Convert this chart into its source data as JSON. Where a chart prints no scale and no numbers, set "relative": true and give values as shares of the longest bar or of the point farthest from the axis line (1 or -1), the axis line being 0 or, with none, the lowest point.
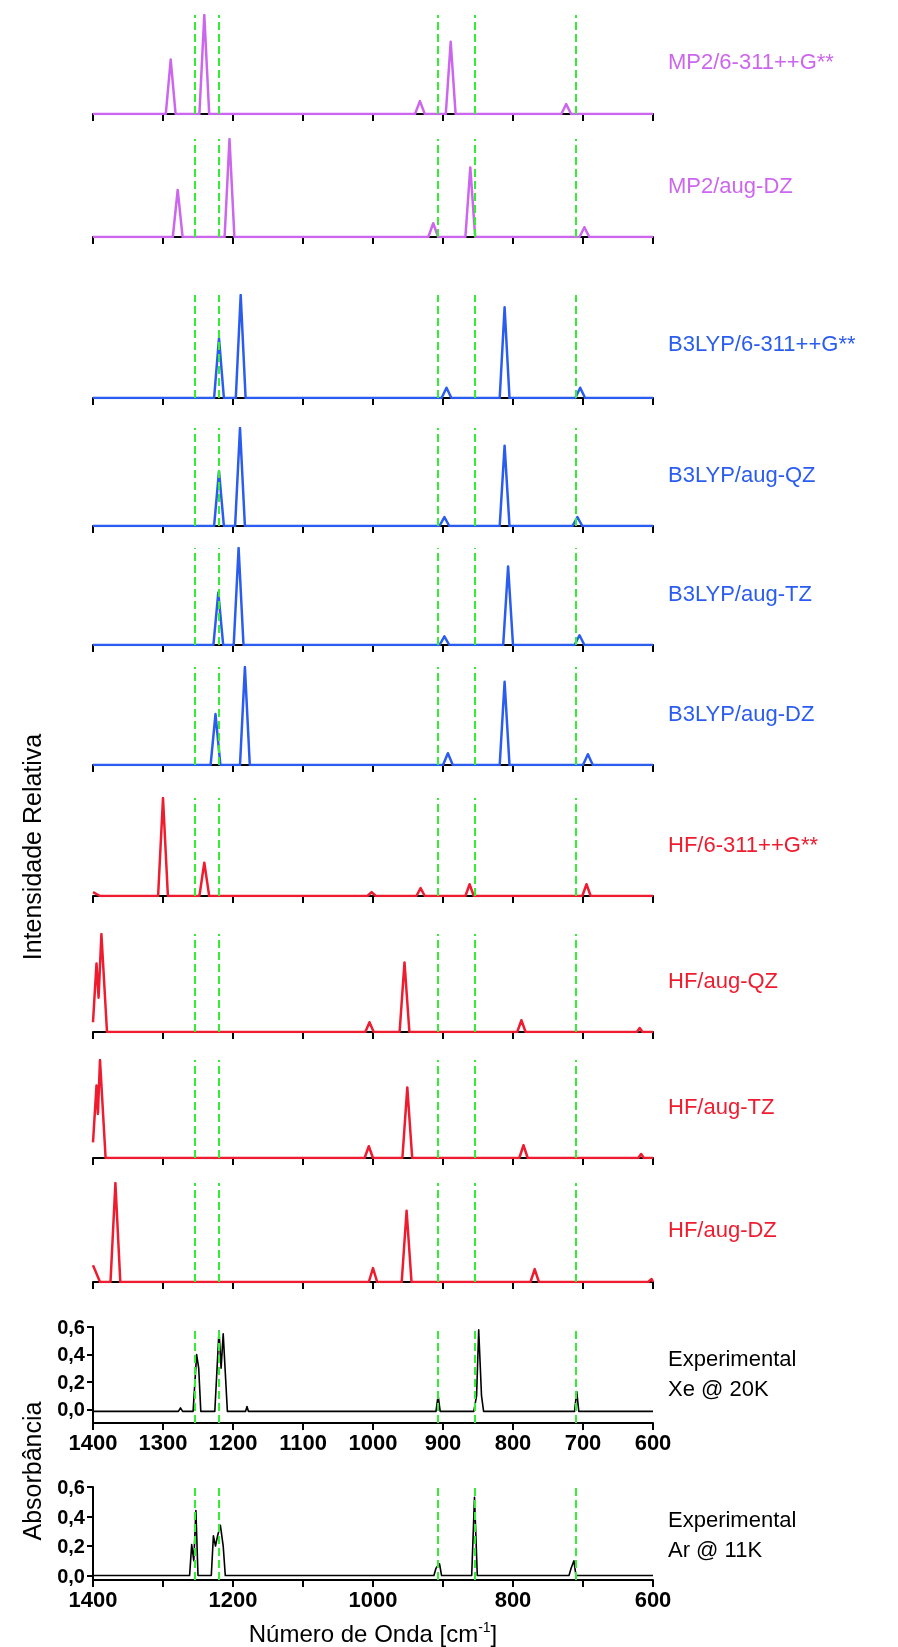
{
  "chart_data": [
    {
      "type": "line",
      "relative": true,
      "tick_labels": false,
      "xlim": [
        1400,
        600
      ],
      "xticks": [
        1400,
        1300,
        1200,
        1100,
        1000,
        900,
        800,
        700,
        600
      ],
      "annotations": [
        "MP2/6-311++G**"
      ],
      "series": [
        {
          "color": "#cc66ee",
          "x": [
            1400,
            1296,
            1289,
            1282,
            1248,
            1241,
            1234,
            940,
            933,
            926,
            896,
            889,
            882,
            731,
            724,
            717,
            600
          ],
          "values": [
            0,
            0,
            0.55,
            0,
            0,
            1,
            0,
            0,
            0.13,
            0,
            0,
            0.73,
            0,
            0,
            0.1,
            0,
            0
          ]
        }
      ],
      "ref_lines": [
        {
          "axis": "x",
          "value": 1255,
          "color": "#33ee33",
          "line_style": "dashed"
        },
        {
          "axis": "x",
          "value": 1220,
          "color": "#33ee33",
          "line_style": "dashed"
        },
        {
          "axis": "x",
          "value": 908,
          "color": "#33ee33",
          "line_style": "dashed"
        },
        {
          "axis": "x",
          "value": 854,
          "color": "#33ee33",
          "line_style": "dashed"
        },
        {
          "axis": "x",
          "value": 711,
          "color": "#33ee33",
          "line_style": "dashed"
        }
      ]
    },
    {
      "type": "line",
      "relative": true,
      "tick_labels": false,
      "xlim": [
        1400,
        600
      ],
      "xticks": [
        1400,
        1300,
        1200,
        1100,
        1000,
        900,
        800,
        700,
        600
      ],
      "annotations": [
        "MP2/aug-DZ"
      ],
      "series": [
        {
          "color": "#cc66ee",
          "x": [
            1400,
            1286,
            1279,
            1272,
            1212,
            1205,
            1198,
            921,
            914,
            907,
            868,
            861,
            854,
            705,
            698,
            691,
            600
          ],
          "values": [
            0,
            0,
            0.48,
            0,
            0,
            1,
            0,
            0,
            0.14,
            0,
            0,
            0.71,
            0,
            0,
            0.1,
            0,
            0
          ]
        }
      ],
      "ref_lines": [
        {
          "axis": "x",
          "value": 1255,
          "color": "#33ee33",
          "line_style": "dashed"
        },
        {
          "axis": "x",
          "value": 1220,
          "color": "#33ee33",
          "line_style": "dashed"
        },
        {
          "axis": "x",
          "value": 908,
          "color": "#33ee33",
          "line_style": "dashed"
        },
        {
          "axis": "x",
          "value": 854,
          "color": "#33ee33",
          "line_style": "dashed"
        },
        {
          "axis": "x",
          "value": 711,
          "color": "#33ee33",
          "line_style": "dashed"
        }
      ]
    },
    {
      "type": "line",
      "relative": true,
      "tick_labels": false,
      "xlim": [
        1400,
        600
      ],
      "xticks": [
        1400,
        1300,
        1200,
        1100,
        1000,
        900,
        800,
        700,
        600
      ],
      "annotations": [
        "B3LYP/6-311++G**"
      ],
      "series": [
        {
          "color": "#2a5cf0",
          "x": [
            1400,
            1227,
            1220,
            1213,
            1196,
            1189,
            1182,
            902,
            895,
            888,
            819,
            812,
            805,
            711,
            704,
            697,
            600
          ],
          "values": [
            0,
            0,
            0.58,
            0,
            0,
            1,
            0,
            0,
            0.1,
            0,
            0,
            0.88,
            0,
            0,
            0.1,
            0,
            0
          ]
        }
      ],
      "ref_lines": [
        {
          "axis": "x",
          "value": 1255,
          "color": "#33ee33",
          "line_style": "dashed"
        },
        {
          "axis": "x",
          "value": 1220,
          "color": "#33ee33",
          "line_style": "dashed"
        },
        {
          "axis": "x",
          "value": 908,
          "color": "#33ee33",
          "line_style": "dashed"
        },
        {
          "axis": "x",
          "value": 854,
          "color": "#33ee33",
          "line_style": "dashed"
        },
        {
          "axis": "x",
          "value": 711,
          "color": "#33ee33",
          "line_style": "dashed"
        }
      ]
    },
    {
      "type": "line",
      "relative": true,
      "tick_labels": false,
      "xlim": [
        1400,
        600
      ],
      "xticks": [
        1400,
        1300,
        1200,
        1100,
        1000,
        900,
        800,
        700,
        600
      ],
      "annotations": [
        "B3LYP/aug-QZ"
      ],
      "series": [
        {
          "color": "#2a5cf0",
          "x": [
            1400,
            1227,
            1220,
            1213,
            1197,
            1190,
            1183,
            905,
            898,
            891,
            819,
            812,
            805,
            715,
            708,
            701,
            600
          ],
          "values": [
            0,
            0,
            0.56,
            0,
            0,
            1,
            0,
            0,
            0.09,
            0,
            0,
            0.82,
            0,
            0,
            0.09,
            0,
            0
          ]
        }
      ],
      "ref_lines": [
        {
          "axis": "x",
          "value": 1255,
          "color": "#33ee33",
          "line_style": "dashed"
        },
        {
          "axis": "x",
          "value": 1220,
          "color": "#33ee33",
          "line_style": "dashed"
        },
        {
          "axis": "x",
          "value": 908,
          "color": "#33ee33",
          "line_style": "dashed"
        },
        {
          "axis": "x",
          "value": 854,
          "color": "#33ee33",
          "line_style": "dashed"
        },
        {
          "axis": "x",
          "value": 711,
          "color": "#33ee33",
          "line_style": "dashed"
        }
      ]
    },
    {
      "type": "line",
      "relative": true,
      "tick_labels": false,
      "xlim": [
        1400,
        600
      ],
      "xticks": [
        1400,
        1300,
        1200,
        1100,
        1000,
        900,
        800,
        700,
        600
      ],
      "annotations": [
        "B3LYP/aug-TZ"
      ],
      "series": [
        {
          "color": "#2a5cf0",
          "x": [
            1400,
            1228,
            1221,
            1214,
            1199,
            1192,
            1185,
            905,
            898,
            891,
            814,
            807,
            800,
            712,
            705,
            698,
            600
          ],
          "values": [
            0,
            0,
            0.54,
            0,
            0,
            1,
            0,
            0,
            0.09,
            0,
            0,
            0.81,
            0,
            0,
            0.1,
            0,
            0
          ]
        }
      ],
      "ref_lines": [
        {
          "axis": "x",
          "value": 1255,
          "color": "#33ee33",
          "line_style": "dashed"
        },
        {
          "axis": "x",
          "value": 1220,
          "color": "#33ee33",
          "line_style": "dashed"
        },
        {
          "axis": "x",
          "value": 908,
          "color": "#33ee33",
          "line_style": "dashed"
        },
        {
          "axis": "x",
          "value": 854,
          "color": "#33ee33",
          "line_style": "dashed"
        },
        {
          "axis": "x",
          "value": 711,
          "color": "#33ee33",
          "line_style": "dashed"
        }
      ]
    },
    {
      "type": "line",
      "relative": true,
      "tick_labels": false,
      "xlim": [
        1400,
        600
      ],
      "xticks": [
        1400,
        1300,
        1200,
        1100,
        1000,
        900,
        800,
        700,
        600
      ],
      "annotations": [
        "B3LYP/aug-DZ"
      ],
      "series": [
        {
          "color": "#2a5cf0",
          "x": [
            1400,
            1232,
            1225,
            1218,
            1190,
            1183,
            1176,
            900,
            893,
            886,
            819,
            812,
            805,
            700,
            693,
            686,
            600
          ],
          "values": [
            0,
            0,
            0.52,
            0,
            0,
            1,
            0,
            0,
            0.12,
            0,
            0,
            0.85,
            0,
            0,
            0.11,
            0,
            0
          ]
        }
      ],
      "ref_lines": [
        {
          "axis": "x",
          "value": 1255,
          "color": "#33ee33",
          "line_style": "dashed"
        },
        {
          "axis": "x",
          "value": 1220,
          "color": "#33ee33",
          "line_style": "dashed"
        },
        {
          "axis": "x",
          "value": 908,
          "color": "#33ee33",
          "line_style": "dashed"
        },
        {
          "axis": "x",
          "value": 854,
          "color": "#33ee33",
          "line_style": "dashed"
        },
        {
          "axis": "x",
          "value": 711,
          "color": "#33ee33",
          "line_style": "dashed"
        }
      ]
    },
    {
      "type": "line",
      "relative": true,
      "tick_labels": false,
      "xlim": [
        1400,
        600
      ],
      "xticks": [
        1400,
        1300,
        1200,
        1100,
        1000,
        900,
        800,
        700,
        600
      ],
      "annotations": [
        "HF/6-311++G**"
      ],
      "ylabel": "Intensidade Relativa",
      "series": [
        {
          "color": "#ee1c2e",
          "x": [
            1400,
            1390,
            1307,
            1300,
            1293,
            1248,
            1241,
            1234,
            1008,
            1002,
            996,
            938,
            932,
            926,
            868,
            862,
            856,
            701,
            695,
            689,
            600
          ],
          "values": [
            0.04,
            0,
            0,
            1,
            0,
            0,
            0.34,
            0,
            0,
            0.04,
            0,
            0,
            0.08,
            0,
            0,
            0.12,
            0,
            0,
            0.12,
            0,
            0
          ]
        }
      ],
      "ref_lines": [
        {
          "axis": "x",
          "value": 1255,
          "color": "#33ee33",
          "line_style": "dashed"
        },
        {
          "axis": "x",
          "value": 1220,
          "color": "#33ee33",
          "line_style": "dashed"
        },
        {
          "axis": "x",
          "value": 908,
          "color": "#33ee33",
          "line_style": "dashed"
        },
        {
          "axis": "x",
          "value": 854,
          "color": "#33ee33",
          "line_style": "dashed"
        },
        {
          "axis": "x",
          "value": 711,
          "color": "#33ee33",
          "line_style": "dashed"
        }
      ]
    },
    {
      "type": "line",
      "relative": true,
      "tick_labels": false,
      "xlim": [
        1400,
        600
      ],
      "xticks": [
        1400,
        1300,
        1200,
        1100,
        1000,
        900,
        800,
        700,
        600
      ],
      "annotations": [
        "HF/aug-QZ"
      ],
      "series": [
        {
          "color": "#ee1c2e",
          "x": [
            1400,
            1395,
            1392,
            1388,
            1380,
            1011,
            1005,
            999,
            962,
            955,
            948,
            794,
            788,
            782,
            623,
            619,
            615,
            600
          ],
          "values": [
            0.1,
            0.7,
            0.35,
            1,
            0,
            0,
            0.1,
            0,
            0,
            0.71,
            0,
            0,
            0.12,
            0,
            0,
            0.04,
            0,
            0
          ]
        }
      ],
      "ref_lines": [
        {
          "axis": "x",
          "value": 1255,
          "color": "#33ee33",
          "line_style": "dashed"
        },
        {
          "axis": "x",
          "value": 1220,
          "color": "#33ee33",
          "line_style": "dashed"
        },
        {
          "axis": "x",
          "value": 908,
          "color": "#33ee33",
          "line_style": "dashed"
        },
        {
          "axis": "x",
          "value": 854,
          "color": "#33ee33",
          "line_style": "dashed"
        },
        {
          "axis": "x",
          "value": 711,
          "color": "#33ee33",
          "line_style": "dashed"
        }
      ]
    },
    {
      "type": "line",
      "relative": true,
      "tick_labels": false,
      "xlim": [
        1400,
        600
      ],
      "xticks": [
        1400,
        1300,
        1200,
        1100,
        1000,
        900,
        800,
        700,
        600
      ],
      "annotations": [
        "HF/aug-TZ"
      ],
      "series": [
        {
          "color": "#ee1c2e",
          "x": [
            1400,
            1395,
            1393,
            1390,
            1382,
            1012,
            1006,
            1000,
            958,
            951,
            944,
            791,
            785,
            779,
            621,
            617,
            613,
            600
          ],
          "values": [
            0.16,
            0.74,
            0.45,
            1,
            0,
            0,
            0.12,
            0,
            0,
            0.72,
            0,
            0,
            0.13,
            0,
            0,
            0.04,
            0,
            0
          ]
        }
      ],
      "ref_lines": [
        {
          "axis": "x",
          "value": 1255,
          "color": "#33ee33",
          "line_style": "dashed"
        },
        {
          "axis": "x",
          "value": 1220,
          "color": "#33ee33",
          "line_style": "dashed"
        },
        {
          "axis": "x",
          "value": 908,
          "color": "#33ee33",
          "line_style": "dashed"
        },
        {
          "axis": "x",
          "value": 854,
          "color": "#33ee33",
          "line_style": "dashed"
        },
        {
          "axis": "x",
          "value": 711,
          "color": "#33ee33",
          "line_style": "dashed"
        }
      ]
    },
    {
      "type": "line",
      "relative": true,
      "tick_labels": false,
      "xlim": [
        1400,
        600
      ],
      "xticks": [
        1400,
        1300,
        1200,
        1100,
        1000,
        900,
        800,
        700,
        600
      ],
      "annotations": [
        "HF/aug-DZ"
      ],
      "series": [
        {
          "color": "#ee1c2e",
          "x": [
            1400,
            1390,
            1375,
            1368,
            1361,
            1006,
            1000,
            994,
            959,
            952,
            945,
            775,
            769,
            763,
            607,
            602,
            600
          ],
          "values": [
            0.17,
            0,
            0,
            1,
            0,
            0,
            0.14,
            0,
            0,
            0.72,
            0,
            0,
            0.13,
            0,
            0,
            0.03,
            0
          ]
        }
      ],
      "ref_lines": [
        {
          "axis": "x",
          "value": 1255,
          "color": "#33ee33",
          "line_style": "dashed"
        },
        {
          "axis": "x",
          "value": 1220,
          "color": "#33ee33",
          "line_style": "dashed"
        },
        {
          "axis": "x",
          "value": 908,
          "color": "#33ee33",
          "line_style": "dashed"
        },
        {
          "axis": "x",
          "value": 854,
          "color": "#33ee33",
          "line_style": "dashed"
        },
        {
          "axis": "x",
          "value": 711,
          "color": "#33ee33",
          "line_style": "dashed"
        }
      ]
    },
    {
      "type": "line",
      "xlim": [
        1400,
        600
      ],
      "xticks": [
        1400,
        1300,
        1200,
        1100,
        1000,
        900,
        800,
        700,
        600
      ],
      "ylim": [
        -0.1,
        0.6
      ],
      "yticks": [
        {
          "value": 0,
          "label": "0,0"
        },
        {
          "value": 0.2,
          "label": "0,2"
        },
        {
          "value": 0.4,
          "label": "0,4"
        },
        {
          "value": 0.6,
          "label": "0,6"
        }
      ],
      "annotations": [
        "Experimental",
        "Xe @ 20K"
      ],
      "ylabel": "Absorbância",
      "series": [
        {
          "color": "#000000",
          "x": [
            1400,
            1278,
            1275,
            1272,
            1257,
            1252,
            1249,
            1246,
            1226,
            1220,
            1217,
            1214,
            1208,
            1182,
            1180,
            1178,
            910,
            907,
            904,
            856,
            852,
            849,
            845,
            842,
            712,
            709,
            706,
            600
          ],
          "values": [
            -0.015,
            -0.015,
            0.01,
            -0.015,
            -0.015,
            0.4,
            0.3,
            -0.015,
            -0.015,
            0.57,
            0.3,
            0.55,
            -0.015,
            -0.015,
            0.02,
            -0.015,
            -0.015,
            0.1,
            -0.015,
            -0.015,
            0.1,
            0.58,
            0.1,
            -0.015,
            -0.015,
            0.13,
            -0.015,
            -0.015
          ]
        }
      ],
      "ref_lines": [
        {
          "axis": "x",
          "value": 1255,
          "color": "#33ee33",
          "line_style": "dashed"
        },
        {
          "axis": "x",
          "value": 1220,
          "color": "#33ee33",
          "line_style": "dashed"
        },
        {
          "axis": "x",
          "value": 908,
          "color": "#33ee33",
          "line_style": "dashed"
        },
        {
          "axis": "x",
          "value": 854,
          "color": "#33ee33",
          "line_style": "dashed"
        },
        {
          "axis": "x",
          "value": 711,
          "color": "#33ee33",
          "line_style": "dashed"
        }
      ]
    },
    {
      "type": "line",
      "xlim": [
        1400,
        600
      ],
      "xticks": [
        1400,
        {
          "value": 1300,
          "label": null
        },
        1200,
        {
          "value": 1100,
          "label": null
        },
        1000,
        {
          "value": 900,
          "label": null
        },
        800,
        {
          "value": 700,
          "label": null
        },
        600
      ],
      "ylim": [
        -0.03,
        0.6
      ],
      "yticks": [
        {
          "value": 0,
          "label": "0,0"
        },
        {
          "value": 0.2,
          "label": "0,2"
        },
        {
          "value": 0.4,
          "label": "0,4"
        },
        {
          "value": 0.6,
          "label": "0,6"
        }
      ],
      "annotations": [
        "Experimental",
        "Ar @ 11K"
      ],
      "xlabel": "Número de Onda [cm$^{-1}$]",
      "series": [
        {
          "color": "#000000",
          "x": [
            1400,
            1262,
            1259,
            1256,
            1253,
            1250,
            1231,
            1228,
            1225,
            1222,
            1218,
            1214,
            1211,
            913,
            910,
            905,
            902,
            859,
            855,
            851,
            720,
            717,
            713,
            710,
            600
          ],
          "values": [
            0,
            0,
            0.21,
            0.1,
            0.44,
            0,
            0,
            0.27,
            0.2,
            0.27,
            0.34,
            0.2,
            0,
            0,
            0.05,
            0.08,
            0,
            0,
            0.53,
            0,
            0,
            0.05,
            0.1,
            0,
            0
          ]
        }
      ],
      "ref_lines": [
        {
          "axis": "x",
          "value": 1255,
          "color": "#33ee33",
          "line_style": "dashed"
        },
        {
          "axis": "x",
          "value": 1220,
          "color": "#33ee33",
          "line_style": "dashed"
        },
        {
          "axis": "x",
          "value": 908,
          "color": "#33ee33",
          "line_style": "dashed"
        },
        {
          "axis": "x",
          "value": 854,
          "color": "#33ee33",
          "line_style": "dashed"
        },
        {
          "axis": "x",
          "value": 711,
          "color": "#33ee33",
          "line_style": "dashed"
        }
      ]
    }
  ]
}
